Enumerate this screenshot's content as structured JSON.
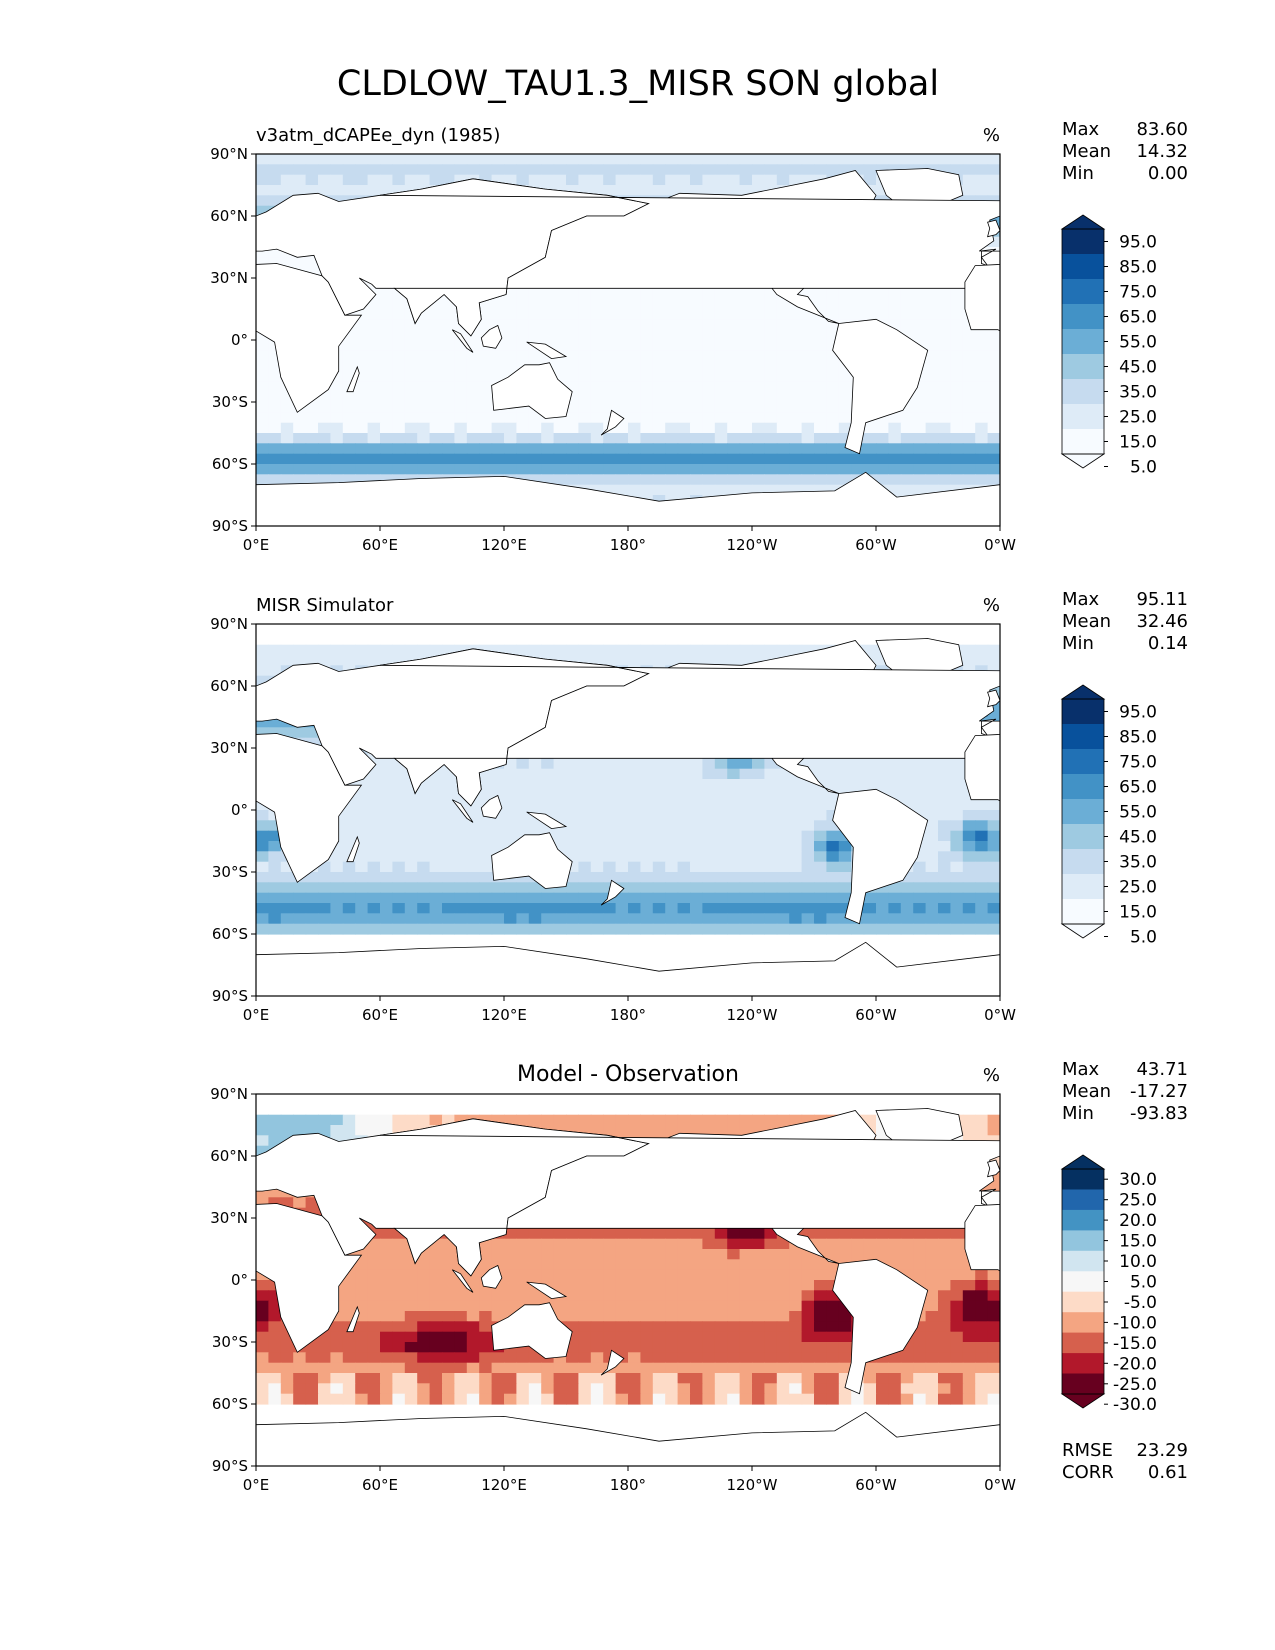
{
  "figure": {
    "title": "CLDLOW_TAU1.3_MISR SON global"
  },
  "axes": {
    "x_ticks": [
      "0°E",
      "60°E",
      "120°E",
      "180°",
      "120°W",
      "60°W",
      "0°W"
    ],
    "y_ticks": [
      "90°N",
      "60°N",
      "30°N",
      "0°",
      "30°S",
      "60°S",
      "90°S"
    ]
  },
  "colors": {
    "blues": [
      "#f7fbff",
      "#deebf7",
      "#c6dbef",
      "#9ecae1",
      "#6baed6",
      "#4292c6",
      "#2171b5",
      "#08519c",
      "#08306b"
    ],
    "diverging": [
      "#67001f",
      "#b2182b",
      "#d6604d",
      "#f4a582",
      "#fddbc7",
      "#f7f7f7",
      "#d1e5f0",
      "#92c5de",
      "#4393c3",
      "#2166ac",
      "#053061"
    ],
    "land_outline": "#000000"
  },
  "panels": [
    {
      "id": "test",
      "left_title": "v3atm_dCAPEe_dyn (1985)",
      "center_title": "",
      "units": "%",
      "stats": [
        {
          "label": "Max",
          "value": "83.60"
        },
        {
          "label": "Mean",
          "value": "14.32"
        },
        {
          "label": "Min",
          "value": "0.00"
        }
      ],
      "colorbar_labels": [
        "95.0",
        "85.0",
        "75.0",
        "65.0",
        "55.0",
        "45.0",
        "35.0",
        "25.0",
        "15.0",
        "5.0"
      ],
      "colormap": "blues",
      "pattern": "model"
    },
    {
      "id": "reference",
      "left_title": "MISR Simulator",
      "center_title": "",
      "units": "%",
      "stats": [
        {
          "label": "Max",
          "value": "95.11"
        },
        {
          "label": "Mean",
          "value": "32.46"
        },
        {
          "label": "Min",
          "value": "0.14"
        }
      ],
      "colorbar_labels": [
        "95.0",
        "85.0",
        "75.0",
        "65.0",
        "55.0",
        "45.0",
        "35.0",
        "25.0",
        "15.0",
        "5.0"
      ],
      "colormap": "blues",
      "pattern": "obs"
    },
    {
      "id": "difference",
      "left_title": "",
      "center_title": "Model - Observation",
      "units": "%",
      "stats": [
        {
          "label": "Max",
          "value": "43.71"
        },
        {
          "label": "Mean",
          "value": "-17.27"
        },
        {
          "label": "Min",
          "value": "-93.83"
        }
      ],
      "colorbar_labels": [
        "30.0",
        "25.0",
        "20.0",
        "15.0",
        "10.0",
        "5.0",
        "-5.0",
        "-10.0",
        "-15.0",
        "-20.0",
        "-25.0",
        "-30.0"
      ],
      "colormap": "diverging",
      "pattern": "diff",
      "metrics": [
        {
          "label": "RMSE",
          "value": "23.29"
        },
        {
          "label": "CORR",
          "value": "0.61"
        }
      ]
    }
  ]
}
